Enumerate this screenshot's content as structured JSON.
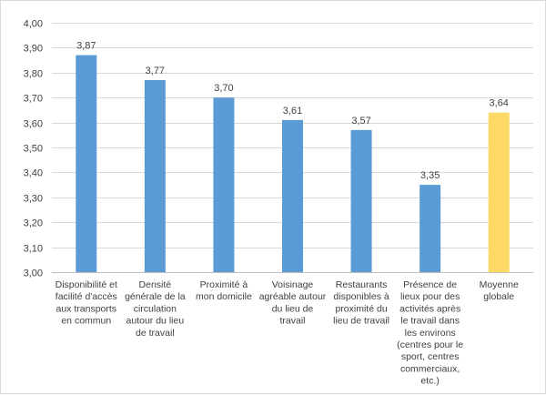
{
  "chart_data": {
    "type": "bar",
    "title": "",
    "xlabel": "",
    "ylabel": "",
    "ylim": [
      3.0,
      4.0
    ],
    "y_tick_step": 0.1,
    "y_tick_labels": [
      "3,00",
      "3,10",
      "3,20",
      "3,30",
      "3,40",
      "3,50",
      "3,60",
      "3,70",
      "3,80",
      "3,90",
      "4,00"
    ],
    "grid": true,
    "legend": "none",
    "categories": [
      "Disponibilité et facilité d'accès aux transports en commun",
      "Densité générale de la circulation autour du lieu de travail",
      "Proximité à mon domicile",
      "Voisinage agréable autour du lieu de travail",
      "Restaurants disponibles à proximité du lieu de travail",
      "Présence de lieux pour des activités après le travail dans les environs (centres pour le sport, centres commerciaux, etc.)",
      "Moyenne globale"
    ],
    "category_lines": [
      [
        "Disponibilité et",
        "facilité d'accès",
        "aux transports",
        "en commun"
      ],
      [
        "Densité",
        "générale de la",
        "circulation",
        "autour du lieu",
        "de travail"
      ],
      [
        "Proximité à",
        "mon domicile"
      ],
      [
        "Voisinage",
        "agréable autour",
        "du lieu de",
        "travail"
      ],
      [
        "Restaurants",
        "disponibles à",
        "proximité du",
        "lieu de travail"
      ],
      [
        "Présence de",
        "lieux pour des",
        "activités après",
        "le travail dans",
        "les environs",
        "(centres pour le",
        "sport, centres",
        "commerciaux,",
        "etc.)"
      ],
      [
        "Moyenne",
        "globale"
      ]
    ],
    "values": [
      3.87,
      3.77,
      3.7,
      3.61,
      3.57,
      3.35,
      3.64
    ],
    "value_labels": [
      "3,87",
      "3,77",
      "3,70",
      "3,61",
      "3,57",
      "3,35",
      "3,64"
    ],
    "bar_colors": [
      "#5b9bd5",
      "#5b9bd5",
      "#5b9bd5",
      "#5b9bd5",
      "#5b9bd5",
      "#5b9bd5",
      "#ffd966"
    ]
  }
}
